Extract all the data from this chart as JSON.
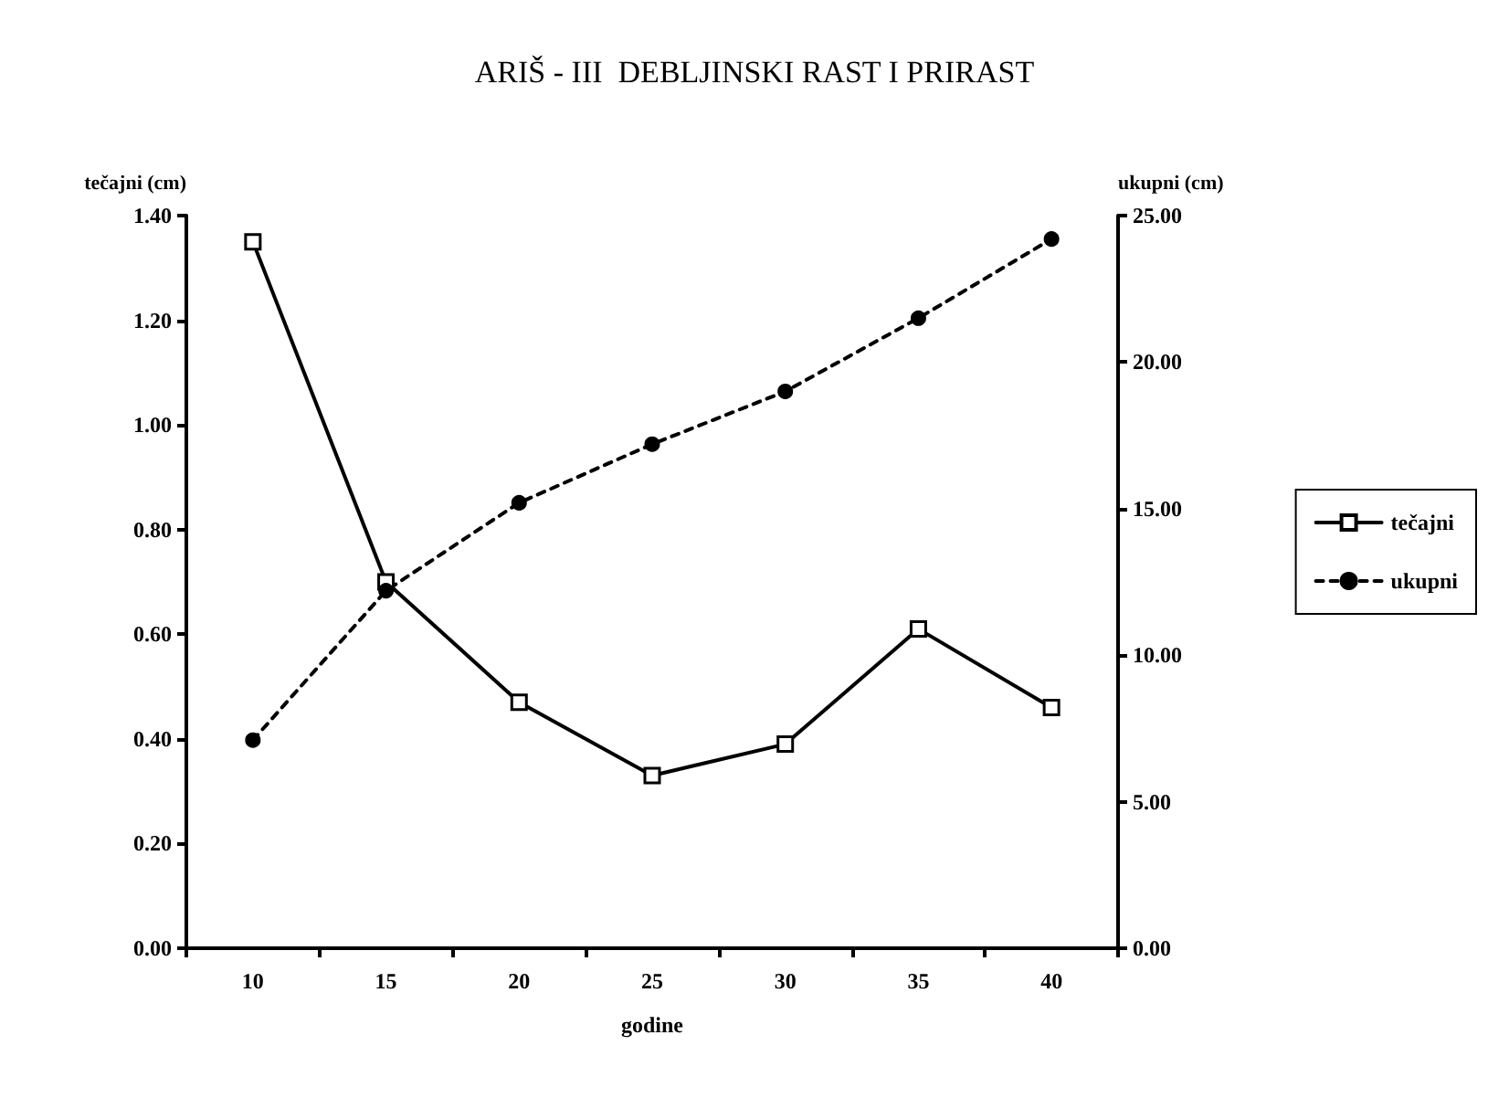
{
  "chart_data": {
    "type": "line",
    "title": "ARIŠ - III  DEBLJINSKI RAST I PRIRAST",
    "xlabel": "godine",
    "ylabel": "tečajni (cm)",
    "y2label": "ukupni (cm)",
    "categories": [
      "10",
      "15",
      "20",
      "25",
      "30",
      "35",
      "40"
    ],
    "series": [
      {
        "name": "tečajni",
        "color": "#000000",
        "marker": "square",
        "line_style": "solid",
        "values": [
          1.35,
          0.7,
          0.47,
          0.33,
          0.39,
          0.61,
          0.46
        ]
      },
      {
        "name": "ukupni",
        "color": "#000000",
        "marker": "circle",
        "line_style": "dashed",
        "axis": "y2",
        "values": [
          7.1,
          12.2,
          15.2,
          17.2,
          19.0,
          21.5,
          24.2
        ]
      }
    ],
    "ylim": [
      0,
      1.4
    ],
    "yticks": [
      {
        "value": 0,
        "label": "0.00"
      },
      {
        "value": 0.2,
        "label": "0.20"
      },
      {
        "value": 0.4,
        "label": "0.40"
      },
      {
        "value": 0.6,
        "label": "0.60"
      },
      {
        "value": 0.8,
        "label": "0.80"
      },
      {
        "value": 1.0,
        "label": "1.00"
      },
      {
        "value": 1.2,
        "label": "1.20"
      },
      {
        "value": 1.4,
        "label": "1.40"
      }
    ],
    "y2lim": [
      0,
      25
    ],
    "y2ticks": [
      {
        "value": 0,
        "label": "0.00"
      },
      {
        "value": 5,
        "label": "5.00"
      },
      {
        "value": 10,
        "label": "10.00"
      },
      {
        "value": 15,
        "label": "15.00"
      },
      {
        "value": 20,
        "label": "20.00"
      },
      {
        "value": 25,
        "label": "25.00"
      }
    ],
    "grid": false,
    "legend": "right"
  }
}
